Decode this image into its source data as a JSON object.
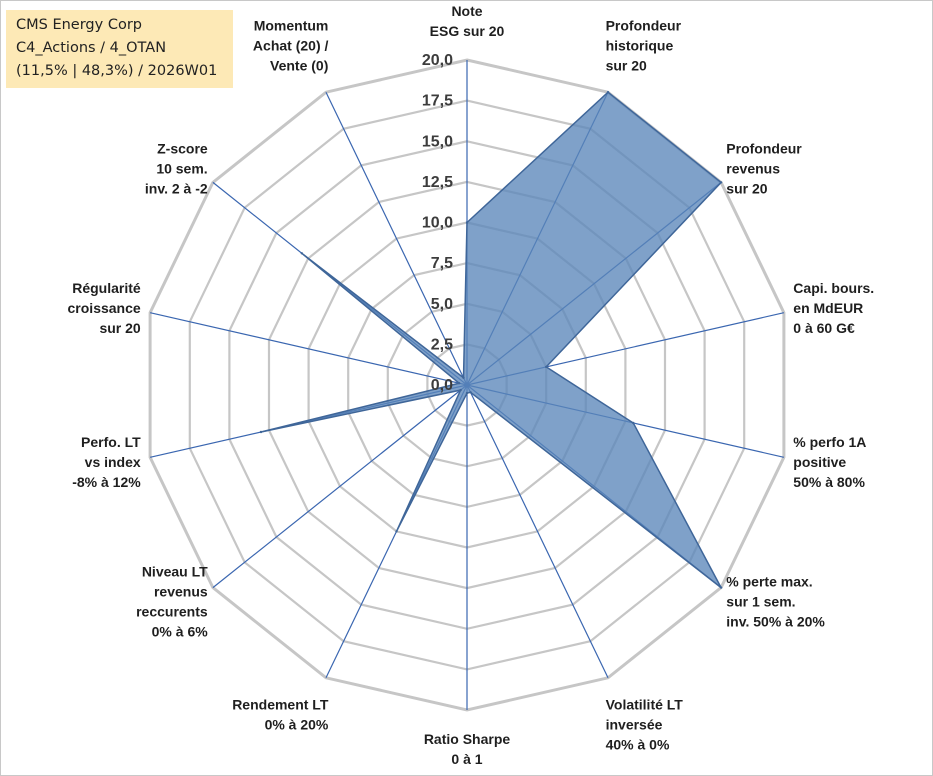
{
  "info_box": {
    "line1": "CMS Energy Corp",
    "line2": "C4_Actions / 4_OTAN",
    "line3": "(11,5% | 48,3%) / 2026W01"
  },
  "chart_data": {
    "type": "radar",
    "rlim": [
      0,
      20
    ],
    "rticks": [
      "0,0",
      "2,5",
      "5,0",
      "7,5",
      "10,0",
      "12,5",
      "15,0",
      "17,5",
      "20,0"
    ],
    "grid": true,
    "axes": [
      [
        "Note",
        "ESG sur 20"
      ],
      [
        "Profondeur",
        "historique",
        "sur 20"
      ],
      [
        "Profondeur",
        "revenus",
        "sur 20"
      ],
      [
        "Capi. bours.",
        "en MdEUR",
        "0 à 60 G€"
      ],
      [
        "% perfo 1A",
        "positive",
        "50% à 80%"
      ],
      [
        "% perte max.",
        "sur 1 sem.",
        "inv. 50% à 20%"
      ],
      [
        "Volatilité LT",
        "inversée",
        "40% à 0%"
      ],
      [
        "Ratio Sharpe",
        "0 à 1"
      ],
      [
        "Rendement LT",
        "0% à 20%"
      ],
      [
        "Niveau LT",
        "revenus",
        "reccurents",
        "0% à 6%"
      ],
      [
        "Perfo. LT",
        "vs index",
        "-8% à 12%"
      ],
      [
        "Régularité",
        "croissance",
        "sur 20"
      ],
      [
        "Z-score",
        "10 sem.",
        "inv. 2 à -2"
      ],
      [
        "Momentum",
        "Achat (20) /",
        "Vente (0)"
      ]
    ],
    "values": [
      10,
      20,
      20,
      5,
      10.5,
      20,
      0.5,
      0.5,
      10,
      0.5,
      13,
      0.5,
      13,
      0.5
    ],
    "colors": {
      "fill": "#5b86ba",
      "fill_opacity": 0.78,
      "stroke": "#3f6699",
      "spoke": "#3a66b0",
      "grid": "#c6c6c6"
    }
  }
}
